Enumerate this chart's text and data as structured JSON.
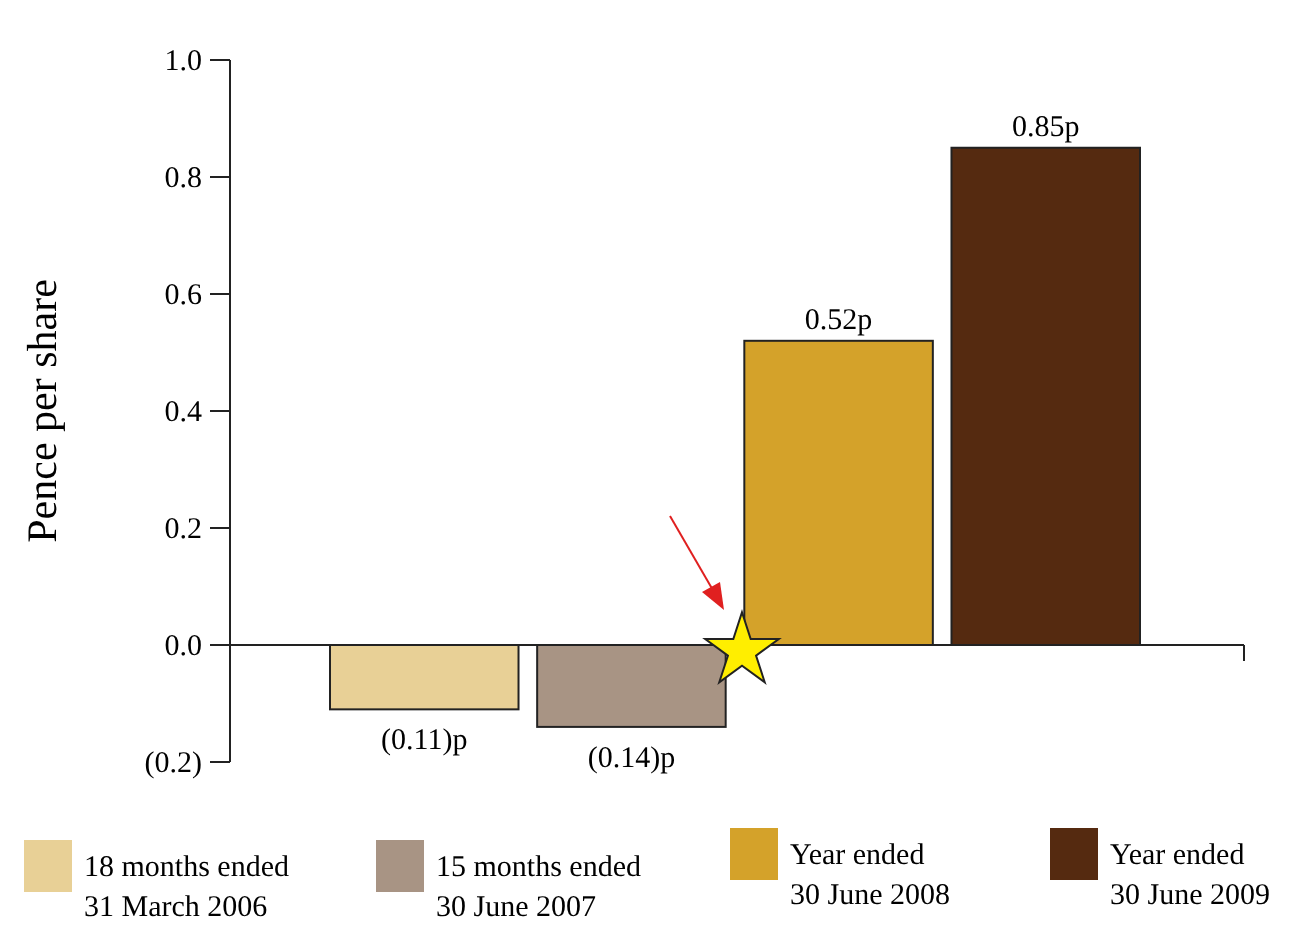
{
  "chart_data": {
    "type": "bar",
    "ylabel": "Pence per share",
    "categories": [
      null,
      null,
      null,
      null
    ],
    "series": [
      {
        "name": "18 months ended\n31 March 2006",
        "color": "#e8d096",
        "values": [
          -0.11,
          null,
          null,
          null
        ],
        "value_labels": [
          "(0.11)p",
          null,
          null,
          null
        ]
      },
      {
        "name": "15 months ended\n30 June 2007",
        "color": "#a89484",
        "values": [
          null,
          -0.14,
          null,
          null
        ],
        "value_labels": [
          null,
          "(0.14)p",
          null,
          null
        ]
      },
      {
        "name": "Year ended\n30 June 2008",
        "color": "#d4a22a",
        "values": [
          null,
          null,
          0.52,
          null
        ],
        "value_labels": [
          null,
          null,
          "0.52p",
          null
        ]
      },
      {
        "name": "Year ended\n30 June 2009",
        "color": "#552a10",
        "values": [
          null,
          null,
          null,
          0.85
        ],
        "value_labels": [
          null,
          null,
          null,
          "0.85p"
        ]
      }
    ],
    "ylim": [
      -0.2,
      1.0
    ],
    "yticks": [
      {
        "value": -0.2,
        "label": "(0.2)"
      },
      {
        "value": 0,
        "label": "0.0"
      },
      {
        "value": 0.2,
        "label": "0.2"
      },
      {
        "value": 0.4,
        "label": "0.4"
      },
      {
        "value": 0.6,
        "label": "0.6"
      },
      {
        "value": 0.8,
        "label": "0.8"
      },
      {
        "value": 1.0,
        "label": "1.0"
      }
    ],
    "tick_labels": "y",
    "legend": "bottom"
  }
}
